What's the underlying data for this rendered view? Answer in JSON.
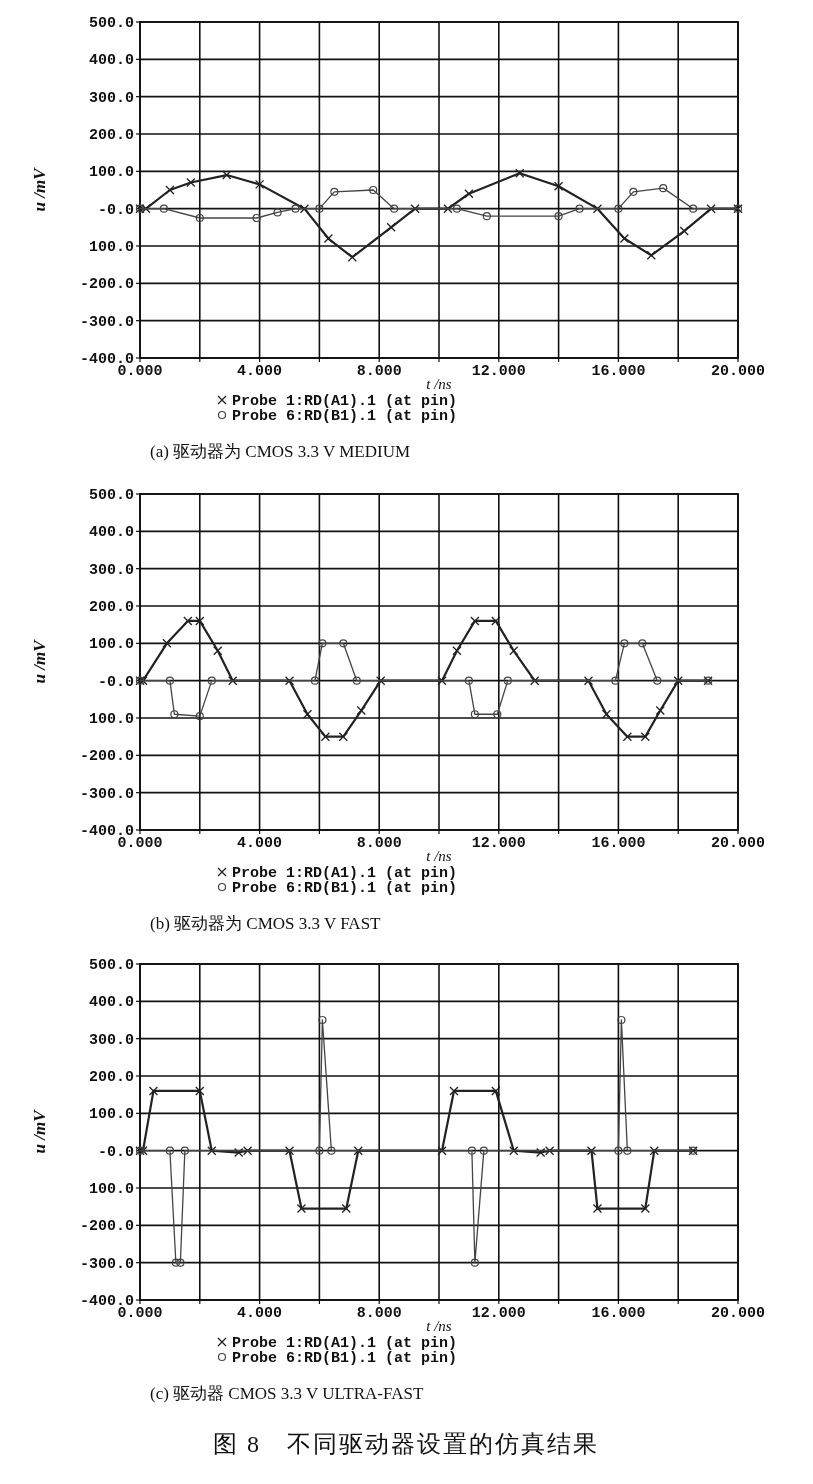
{
  "chart_data": [
    {
      "type": "line",
      "title": "(a) 驱动器为 CMOS 3.3 V MEDIUM",
      "xlabel": "t /ns",
      "ylabel": "u /mV",
      "legend": "bottom",
      "grid": true,
      "xlim": [
        0,
        20
      ],
      "xticks": [
        {
          "value": 0,
          "label": "0.000"
        },
        {
          "value": 2,
          "label": null
        },
        {
          "value": 4,
          "label": "4.000"
        },
        {
          "value": 6,
          "label": null
        },
        {
          "value": 8,
          "label": "8.000"
        },
        {
          "value": 10,
          "label": null
        },
        {
          "value": 12,
          "label": "12.000"
        },
        {
          "value": 14,
          "label": null
        },
        {
          "value": 16,
          "label": "16.000"
        },
        {
          "value": 18,
          "label": null
        },
        {
          "value": 20,
          "label": "20.000"
        }
      ],
      "ylim": [
        -400,
        500
      ],
      "yticks": [
        {
          "value": 500,
          "label": "500.0"
        },
        {
          "value": 400,
          "label": "400.0"
        },
        {
          "value": 300,
          "label": "300.0"
        },
        {
          "value": 200,
          "label": "200.0"
        },
        {
          "value": 100,
          "label": "100.0"
        },
        {
          "value": 0,
          "label": "-0.0"
        },
        {
          "value": -100,
          "label": "100.0"
        },
        {
          "value": -200,
          "label": "-200.0"
        },
        {
          "value": -300,
          "label": "-300.0"
        },
        {
          "value": -400,
          "label": "-400.0"
        }
      ],
      "series": [
        {
          "name": "Probe 1:RD(A1).1 (at pin)",
          "color": "#222222",
          "marker": "cross",
          "x": [
            0,
            0.2,
            1.0,
            1.7,
            2.9,
            4.0,
            5.5,
            6.3,
            7.1,
            8.4,
            9.2,
            10.3,
            11.0,
            12.7,
            14.0,
            15.3,
            16.2,
            17.1,
            18.2,
            19.1,
            20
          ],
          "values": [
            0,
            0,
            50,
            70,
            90,
            65,
            0,
            -80,
            -130,
            -50,
            0,
            0,
            40,
            95,
            60,
            0,
            -80,
            -125,
            -60,
            0,
            0
          ]
        },
        {
          "name": "Probe 6:RD(B1).1 (at pin)",
          "color": "#444444",
          "marker": "circle",
          "x": [
            0,
            0.8,
            2.0,
            3.9,
            4.6,
            5.2,
            6.0,
            6.5,
            7.8,
            8.5,
            10.6,
            11.6,
            14.0,
            14.7,
            16.0,
            16.5,
            17.5,
            18.5,
            20
          ],
          "values": [
            0,
            0,
            -25,
            -25,
            -10,
            0,
            0,
            45,
            50,
            0,
            0,
            -20,
            -20,
            0,
            0,
            45,
            55,
            0,
            0
          ]
        }
      ]
    },
    {
      "type": "line",
      "title": "(b) 驱动器为 CMOS 3.3 V FAST",
      "xlabel": "t /ns",
      "ylabel": "u /mV",
      "legend": "bottom",
      "grid": true,
      "xlim": [
        0,
        20
      ],
      "xticks": [
        {
          "value": 0,
          "label": "0.000"
        },
        {
          "value": 2,
          "label": null
        },
        {
          "value": 4,
          "label": "4.000"
        },
        {
          "value": 6,
          "label": null
        },
        {
          "value": 8,
          "label": "8.000"
        },
        {
          "value": 10,
          "label": null
        },
        {
          "value": 12,
          "label": "12.000"
        },
        {
          "value": 14,
          "label": null
        },
        {
          "value": 16,
          "label": "16.000"
        },
        {
          "value": 18,
          "label": null
        },
        {
          "value": 20,
          "label": "20.000"
        }
      ],
      "ylim": [
        -400,
        500
      ],
      "yticks": [
        {
          "value": 500,
          "label": "500.0"
        },
        {
          "value": 400,
          "label": "400.0"
        },
        {
          "value": 300,
          "label": "300.0"
        },
        {
          "value": 200,
          "label": "200.0"
        },
        {
          "value": 100,
          "label": "100.0"
        },
        {
          "value": 0,
          "label": "-0.0"
        },
        {
          "value": -100,
          "label": "100.0"
        },
        {
          "value": -200,
          "label": "-200.0"
        },
        {
          "value": -300,
          "label": "-300.0"
        },
        {
          "value": -400,
          "label": "-400.0"
        }
      ],
      "series": [
        {
          "name": "Probe 1:RD(A1).1 (at pin)",
          "color": "#222222",
          "marker": "cross",
          "x": [
            0,
            0.1,
            0.9,
            1.6,
            2.0,
            2.6,
            3.1,
            5.0,
            5.6,
            6.2,
            6.8,
            7.4,
            8.05,
            10.1,
            10.6,
            11.2,
            11.9,
            12.5,
            13.2,
            15.0,
            15.6,
            16.3,
            16.9,
            17.4,
            18.0,
            19
          ],
          "values": [
            0,
            0,
            100,
            160,
            160,
            80,
            0,
            0,
            -90,
            -150,
            -150,
            -80,
            0,
            0,
            80,
            160,
            160,
            80,
            0,
            0,
            -90,
            -150,
            -150,
            -80,
            0,
            0
          ]
        },
        {
          "name": "Probe 6:RD(B1).1 (at pin)",
          "color": "#444444",
          "marker": "circle",
          "x": [
            0,
            1.0,
            1.15,
            2.0,
            2.4,
            5.85,
            6.1,
            6.8,
            7.25,
            11.0,
            11.2,
            11.95,
            12.3,
            15.9,
            16.2,
            16.8,
            17.3,
            19
          ],
          "values": [
            0,
            0,
            -90,
            -95,
            0,
            0,
            100,
            100,
            0,
            0,
            -90,
            -90,
            0,
            0,
            100,
            100,
            0,
            0
          ]
        }
      ]
    },
    {
      "type": "line",
      "title": "(c) 驱动器 CMOS 3.3 V ULTRA-FAST",
      "xlabel": "t /ns",
      "ylabel": "u /mV",
      "legend": "bottom",
      "grid": true,
      "annotations": [
        "图 8　不同驱动器设置的仿真结果"
      ],
      "xlim": [
        0,
        20
      ],
      "xticks": [
        {
          "value": 0,
          "label": "0.000"
        },
        {
          "value": 2,
          "label": null
        },
        {
          "value": 4,
          "label": "4.000"
        },
        {
          "value": 6,
          "label": null
        },
        {
          "value": 8,
          "label": "8.000"
        },
        {
          "value": 10,
          "label": null
        },
        {
          "value": 12,
          "label": "12.000"
        },
        {
          "value": 14,
          "label": null
        },
        {
          "value": 16,
          "label": "16.000"
        },
        {
          "value": 18,
          "label": null
        },
        {
          "value": 20,
          "label": "20.000"
        }
      ],
      "ylim": [
        -400,
        500
      ],
      "yticks": [
        {
          "value": 500,
          "label": "500.0"
        },
        {
          "value": 400,
          "label": "400.0"
        },
        {
          "value": 300,
          "label": "300.0"
        },
        {
          "value": 200,
          "label": "200.0"
        },
        {
          "value": 100,
          "label": "100.0"
        },
        {
          "value": 0,
          "label": "-0.0"
        },
        {
          "value": -100,
          "label": "100.0"
        },
        {
          "value": -200,
          "label": "-200.0"
        },
        {
          "value": -300,
          "label": "-300.0"
        },
        {
          "value": -400,
          "label": "-400.0"
        }
      ],
      "series": [
        {
          "name": "Probe 1:RD(A1).1 (at pin)",
          "color": "#222222",
          "marker": "cross",
          "x": [
            0,
            0.1,
            0.45,
            2.0,
            2.4,
            3.3,
            3.6,
            5.0,
            5.4,
            6.9,
            7.3,
            10.1,
            10.5,
            11.9,
            12.5,
            13.4,
            13.7,
            15.1,
            15.3,
            16.9,
            17.2,
            18.5
          ],
          "values": [
            0,
            0,
            160,
            160,
            0,
            -5,
            0,
            0,
            -155,
            -155,
            0,
            0,
            160,
            160,
            0,
            -5,
            0,
            0,
            -155,
            -155,
            0,
            0
          ]
        },
        {
          "name": "Probe 6:RD(B1).1 (at pin)",
          "color": "#444444",
          "marker": "circle",
          "x": [
            0,
            1.0,
            1.2,
            1.35,
            1.5,
            6.0,
            6.1,
            6.4,
            11.1,
            11.2,
            11.5,
            16.0,
            16.1,
            16.3,
            18.5
          ],
          "values": [
            0,
            0,
            -300,
            -300,
            0,
            0,
            350,
            0,
            0,
            -300,
            0,
            0,
            350,
            0,
            0
          ]
        }
      ]
    }
  ]
}
